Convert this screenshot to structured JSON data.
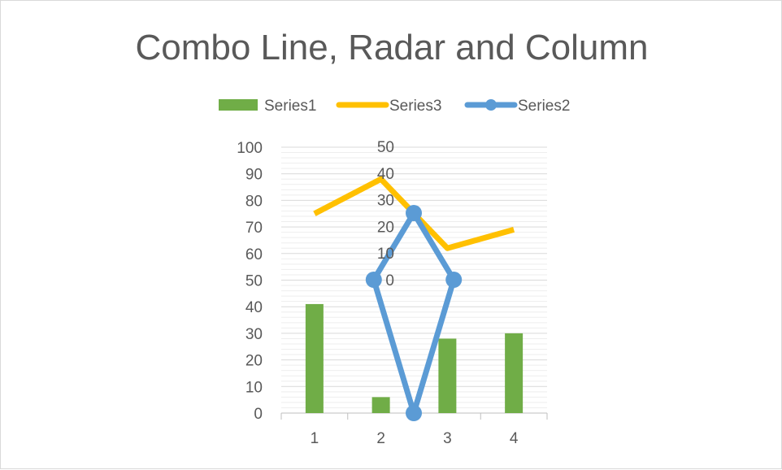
{
  "chart_data": {
    "type": "combo",
    "title": "Combo Line, Radar and Column",
    "legend_position": "top",
    "legend": [
      {
        "name": "Series1",
        "kind": "column",
        "color": "#70ad47"
      },
      {
        "name": "Series3",
        "kind": "line",
        "color": "#ffc000"
      },
      {
        "name": "Series2",
        "kind": "radar",
        "color": "#5b9bd5"
      }
    ],
    "categories": [
      "1",
      "2",
      "3",
      "4"
    ],
    "primary_y": {
      "ticks": [
        "0",
        "10",
        "20",
        "30",
        "40",
        "50",
        "60",
        "70",
        "80",
        "90",
        "100"
      ],
      "min": 0,
      "max": 100
    },
    "radar_axis": {
      "ticks": [
        "0",
        "10",
        "20",
        "30",
        "40",
        "50"
      ],
      "min": 0,
      "max": 50
    },
    "grid": true,
    "series": [
      {
        "name": "Series1",
        "type": "column",
        "color": "#70ad47",
        "values": [
          41,
          6,
          28,
          30
        ]
      },
      {
        "name": "Series3",
        "type": "line",
        "color": "#ffc000",
        "values": [
          75,
          88,
          62,
          69
        ]
      },
      {
        "name": "Series2",
        "type": "radar",
        "color": "#5b9bd5",
        "values": [
          25,
          15,
          50,
          15
        ]
      }
    ]
  }
}
